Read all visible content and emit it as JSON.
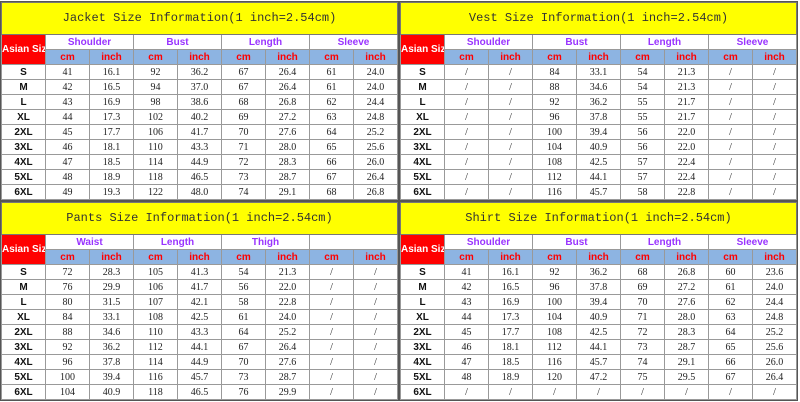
{
  "colors": {
    "title_bg": "#ffff00",
    "asian_bg": "#ff0000",
    "unit_bg": "#8db4e2",
    "group_text": "#9933ff",
    "unit_text": "#ff0000"
  },
  "size_label": "Asian Size",
  "units": [
    "cm",
    "inch"
  ],
  "sizes": [
    "S",
    "M",
    "L",
    "XL",
    "2XL",
    "3XL",
    "4XL",
    "5XL",
    "6XL"
  ],
  "tables": [
    {
      "title": "Jacket Size Information(1 inch=2.54cm)",
      "groups": [
        "Shoulder",
        "Bust",
        "Length",
        "Sleeve"
      ],
      "rows": [
        [
          "41",
          "16.1",
          "92",
          "36.2",
          "67",
          "26.4",
          "61",
          "24.0"
        ],
        [
          "42",
          "16.5",
          "94",
          "37.0",
          "67",
          "26.4",
          "61",
          "24.0"
        ],
        [
          "43",
          "16.9",
          "98",
          "38.6",
          "68",
          "26.8",
          "62",
          "24.4"
        ],
        [
          "44",
          "17.3",
          "102",
          "40.2",
          "69",
          "27.2",
          "63",
          "24.8"
        ],
        [
          "45",
          "17.7",
          "106",
          "41.7",
          "70",
          "27.6",
          "64",
          "25.2"
        ],
        [
          "46",
          "18.1",
          "110",
          "43.3",
          "71",
          "28.0",
          "65",
          "25.6"
        ],
        [
          "47",
          "18.5",
          "114",
          "44.9",
          "72",
          "28.3",
          "66",
          "26.0"
        ],
        [
          "48",
          "18.9",
          "118",
          "46.5",
          "73",
          "28.7",
          "67",
          "26.4"
        ],
        [
          "49",
          "19.3",
          "122",
          "48.0",
          "74",
          "29.1",
          "68",
          "26.8"
        ]
      ]
    },
    {
      "title": "Vest Size Information(1 inch=2.54cm)",
      "groups": [
        "Shoulder",
        "Bust",
        "Length",
        "Sleeve"
      ],
      "rows": [
        [
          "/",
          "/",
          "84",
          "33.1",
          "54",
          "21.3",
          "/",
          "/"
        ],
        [
          "/",
          "/",
          "88",
          "34.6",
          "54",
          "21.3",
          "/",
          "/"
        ],
        [
          "/",
          "/",
          "92",
          "36.2",
          "55",
          "21.7",
          "/",
          "/"
        ],
        [
          "/",
          "/",
          "96",
          "37.8",
          "55",
          "21.7",
          "/",
          "/"
        ],
        [
          "/",
          "/",
          "100",
          "39.4",
          "56",
          "22.0",
          "/",
          "/"
        ],
        [
          "/",
          "/",
          "104",
          "40.9",
          "56",
          "22.0",
          "/",
          "/"
        ],
        [
          "/",
          "/",
          "108",
          "42.5",
          "57",
          "22.4",
          "/",
          "/"
        ],
        [
          "/",
          "/",
          "112",
          "44.1",
          "57",
          "22.4",
          "/",
          "/"
        ],
        [
          "/",
          "/",
          "116",
          "45.7",
          "58",
          "22.8",
          "/",
          "/"
        ]
      ]
    },
    {
      "title": "Pants Size Information(1 inch=2.54cm)",
      "groups": [
        "Waist",
        "Length",
        "Thigh",
        ""
      ],
      "rows": [
        [
          "72",
          "28.3",
          "105",
          "41.3",
          "54",
          "21.3",
          "/",
          "/"
        ],
        [
          "76",
          "29.9",
          "106",
          "41.7",
          "56",
          "22.0",
          "/",
          "/"
        ],
        [
          "80",
          "31.5",
          "107",
          "42.1",
          "58",
          "22.8",
          "/",
          "/"
        ],
        [
          "84",
          "33.1",
          "108",
          "42.5",
          "61",
          "24.0",
          "/",
          "/"
        ],
        [
          "88",
          "34.6",
          "110",
          "43.3",
          "64",
          "25.2",
          "/",
          "/"
        ],
        [
          "92",
          "36.2",
          "112",
          "44.1",
          "67",
          "26.4",
          "/",
          "/"
        ],
        [
          "96",
          "37.8",
          "114",
          "44.9",
          "70",
          "27.6",
          "/",
          "/"
        ],
        [
          "100",
          "39.4",
          "116",
          "45.7",
          "73",
          "28.7",
          "/",
          "/"
        ],
        [
          "104",
          "40.9",
          "118",
          "46.5",
          "76",
          "29.9",
          "/",
          "/"
        ]
      ]
    },
    {
      "title": "Shirt Size Information(1 inch=2.54cm)",
      "groups": [
        "Shoulder",
        "Bust",
        "Length",
        "Sleeve"
      ],
      "rows": [
        [
          "41",
          "16.1",
          "92",
          "36.2",
          "68",
          "26.8",
          "60",
          "23.6"
        ],
        [
          "42",
          "16.5",
          "96",
          "37.8",
          "69",
          "27.2",
          "61",
          "24.0"
        ],
        [
          "43",
          "16.9",
          "100",
          "39.4",
          "70",
          "27.6",
          "62",
          "24.4"
        ],
        [
          "44",
          "17.3",
          "104",
          "40.9",
          "71",
          "28.0",
          "63",
          "24.8"
        ],
        [
          "45",
          "17.7",
          "108",
          "42.5",
          "72",
          "28.3",
          "64",
          "25.2"
        ],
        [
          "46",
          "18.1",
          "112",
          "44.1",
          "73",
          "28.7",
          "65",
          "25.6"
        ],
        [
          "47",
          "18.5",
          "116",
          "45.7",
          "74",
          "29.1",
          "66",
          "26.0"
        ],
        [
          "48",
          "18.9",
          "120",
          "47.2",
          "75",
          "29.5",
          "67",
          "26.4"
        ],
        [
          "/",
          "/",
          "/",
          "/",
          "/",
          "/",
          "/",
          "/"
        ]
      ]
    }
  ]
}
